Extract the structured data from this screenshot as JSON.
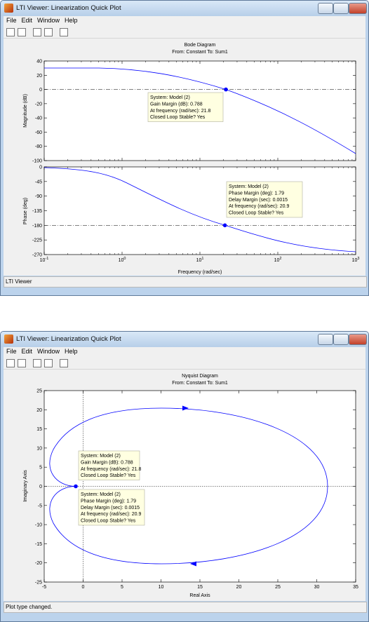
{
  "windows": [
    {
      "title": "LTI Viewer: Linearization Quick Plot",
      "menu": [
        "File",
        "Edit",
        "Window",
        "Help"
      ],
      "plot": {
        "title": "Bode Diagram",
        "subtitle": "From: Constant  To: Sum1",
        "magnitude": {
          "ylabel": "Magnitude (dB)",
          "yticks": [
            40,
            20,
            0,
            -20,
            -40,
            -60,
            -80,
            -100
          ]
        },
        "phase": {
          "ylabel": "Phase (deg)",
          "yticks": [
            0,
            -45,
            -90,
            -135,
            -180,
            -225,
            -270
          ]
        },
        "xticks": [
          {
            "value": 0.1,
            "label": "10",
            "exponent": "-1"
          },
          {
            "value": 1,
            "label": "10",
            "exponent": "0"
          },
          {
            "value": 10,
            "label": "10",
            "exponent": "1"
          },
          {
            "value": 100,
            "label": "10",
            "exponent": "2"
          },
          {
            "value": 1000,
            "label": "10",
            "exponent": "3"
          }
        ],
        "xlabel": "Frequency  (rad/sec)",
        "datatips": [
          [
            "System: Model (2)",
            "Gain Margin (dB): 0.788",
            "At frequency (rad/sec): 21.8",
            "Closed Loop Stable? Yes"
          ],
          [
            "System: Model (2)",
            "Phase Margin (deg): 1.79",
            "Delay Margin (sec): 0.0015",
            "At frequency (rad/sec): 20.9",
            "Closed Loop Stable? Yes"
          ]
        ]
      },
      "status": "LTI Viewer"
    },
    {
      "title": "LTI Viewer: Linearization Quick Plot",
      "menu": [
        "File",
        "Edit",
        "Window",
        "Help"
      ],
      "plot": {
        "title": "Nyquist Diagram",
        "subtitle": "From: Constant  To: Sum1",
        "ylabel": "Imaginary Axis",
        "yticks": [
          25,
          20,
          15,
          10,
          5,
          0,
          -5,
          -10,
          -15,
          -20,
          -25
        ],
        "xticks": [
          -5,
          0,
          5,
          10,
          15,
          20,
          25,
          30,
          35
        ],
        "xlabel": "Real Axis",
        "datatips": [
          [
            "System: Model (2)",
            "Gain Margin (dB): 0.788",
            "At frequency (rad/sec): 21.8",
            "Closed Loop Stable? Yes"
          ],
          [
            "System: Model (2)",
            "Phase Margin (deg): 1.79",
            "Delay Margin (sec): 0.0015",
            "At frequency (rad/sec): 20.9",
            "Closed Loop Stable? Yes"
          ]
        ]
      },
      "status": "Plot type changed."
    }
  ]
}
